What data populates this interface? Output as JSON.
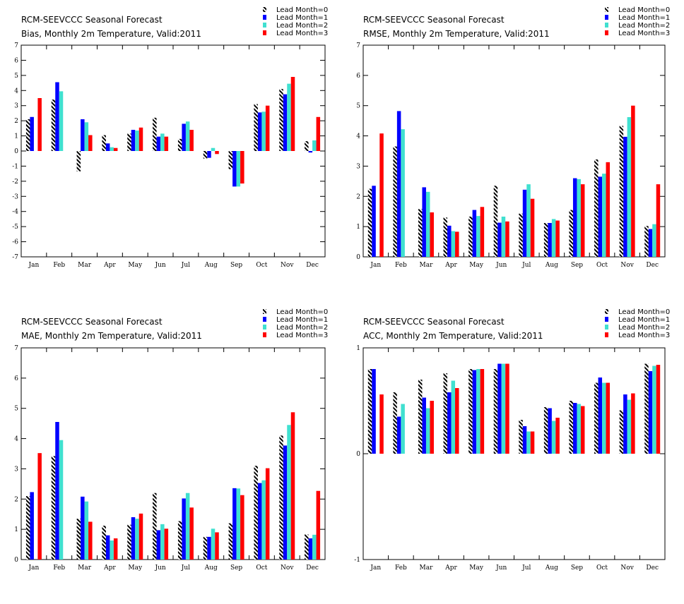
{
  "series_meta": [
    {
      "name": "Lead Month=0",
      "color": "#000000",
      "pattern": "hatch"
    },
    {
      "name": "Lead Month=1",
      "color": "#0000ff",
      "pattern": "solid"
    },
    {
      "name": "Lead Month=2",
      "color": "#40e0d0",
      "pattern": "solid"
    },
    {
      "name": "Lead Month=3",
      "color": "#ff0000",
      "pattern": "solid"
    }
  ],
  "chart_data": [
    {
      "type": "bar",
      "title": "RCM-SEEVCCC Seasonal Forecast",
      "subtitle": "Bias, Monthly 2m Temperature, Valid:2011",
      "categories": [
        "Jan",
        "Feb",
        "Mar",
        "Apr",
        "May",
        "Jun",
        "Jul",
        "Aug",
        "Sep",
        "Oct",
        "Nov",
        "Dec"
      ],
      "ylim": [
        -7,
        7
      ],
      "yticks": [
        -7,
        -6,
        -5,
        -4,
        -3,
        -2,
        -1,
        0,
        1,
        2,
        3,
        4,
        5,
        6,
        7
      ],
      "legend": "top-right",
      "series": [
        {
          "name": "Lead Month=0",
          "values": [
            2.1,
            3.4,
            -1.35,
            1.05,
            1.15,
            2.2,
            0.8,
            -0.5,
            -1.2,
            3.1,
            4.1,
            0.65
          ]
        },
        {
          "name": "Lead Month=1",
          "values": [
            2.25,
            4.55,
            2.1,
            0.5,
            1.4,
            0.95,
            1.8,
            -0.45,
            -2.35,
            2.55,
            3.75,
            -0.1
          ]
        },
        {
          "name": "Lead Month=2",
          "values": [
            0,
            3.95,
            1.9,
            0.25,
            1.35,
            1.15,
            1.95,
            0.2,
            -2.35,
            2.6,
            4.45,
            0.7
          ]
        },
        {
          "name": "Lead Month=3",
          "values": [
            3.5,
            0,
            1.05,
            0.2,
            1.55,
            0.95,
            1.4,
            -0.2,
            -2.15,
            3.0,
            4.9,
            2.25
          ]
        }
      ]
    },
    {
      "type": "bar",
      "title": "RCM-SEEVCCC Seasonal Forecast",
      "subtitle": "RMSE, Monthly 2m Temperature, Valid:2011",
      "categories": [
        "Jan",
        "Feb",
        "Mar",
        "Apr",
        "May",
        "Jun",
        "Jul",
        "Aug",
        "Sep",
        "Oct",
        "Nov",
        "Dec"
      ],
      "ylim": [
        0,
        7
      ],
      "yticks": [
        0,
        1,
        2,
        3,
        4,
        5,
        6,
        7
      ],
      "legend": "top-right",
      "series": [
        {
          "name": "Lead Month=0",
          "values": [
            2.25,
            3.65,
            1.58,
            1.3,
            1.33,
            2.35,
            1.43,
            1.12,
            1.55,
            3.22,
            4.33,
            1.02
          ]
        },
        {
          "name": "Lead Month=1",
          "values": [
            2.35,
            4.82,
            2.3,
            1.03,
            1.55,
            1.13,
            2.22,
            1.12,
            2.6,
            2.65,
            3.97,
            0.92
          ]
        },
        {
          "name": "Lead Month=2",
          "values": [
            0,
            4.22,
            2.15,
            0.85,
            1.35,
            1.33,
            2.4,
            1.25,
            2.57,
            2.75,
            4.62,
            1.08
          ]
        },
        {
          "name": "Lead Month=3",
          "values": [
            4.08,
            0,
            1.47,
            0.83,
            1.65,
            1.17,
            1.92,
            1.2,
            2.4,
            3.13,
            5.0,
            2.4
          ]
        }
      ]
    },
    {
      "type": "bar",
      "title": "RCM-SEEVCCC Seasonal Forecast",
      "subtitle": "MAE, Monthly 2m Temperature, Valid:2011",
      "categories": [
        "Jan",
        "Feb",
        "Mar",
        "Apr",
        "May",
        "Jun",
        "Jul",
        "Aug",
        "Sep",
        "Oct",
        "Nov",
        "Dec"
      ],
      "ylim": [
        0,
        7
      ],
      "yticks": [
        0,
        1,
        2,
        3,
        4,
        5,
        6,
        7
      ],
      "legend": "top-right",
      "series": [
        {
          "name": "Lead Month=0",
          "values": [
            2.1,
            3.42,
            1.35,
            1.12,
            1.15,
            2.2,
            1.27,
            0.75,
            1.2,
            3.1,
            4.1,
            0.83
          ]
        },
        {
          "name": "Lead Month=1",
          "values": [
            2.23,
            4.55,
            2.08,
            0.8,
            1.4,
            0.97,
            2.02,
            0.75,
            2.36,
            2.53,
            3.77,
            0.7
          ]
        },
        {
          "name": "Lead Month=2",
          "values": [
            0,
            3.95,
            1.92,
            0.63,
            1.35,
            1.17,
            2.2,
            1.02,
            2.35,
            2.62,
            4.45,
            0.82
          ]
        },
        {
          "name": "Lead Month=3",
          "values": [
            3.52,
            0,
            1.25,
            0.7,
            1.52,
            1.02,
            1.72,
            0.9,
            2.13,
            3.02,
            4.87,
            2.27
          ]
        }
      ]
    },
    {
      "type": "bar",
      "title": "RCM-SEEVCCC Seasonal Forecast",
      "subtitle": "ACC, Monthly 2m Temperature, Valid:2011",
      "categories": [
        "Jan",
        "Feb",
        "Mar",
        "Apr",
        "May",
        "Jun",
        "Jul",
        "Aug",
        "Sep",
        "Oct",
        "Nov",
        "Dec"
      ],
      "ylim": [
        -1,
        1
      ],
      "yticks": [
        -1,
        0,
        1
      ],
      "legend": "top-right",
      "series": [
        {
          "name": "Lead Month=0",
          "values": [
            0.8,
            0.58,
            0.7,
            0.76,
            0.8,
            0.8,
            0.32,
            0.44,
            0.5,
            0.67,
            0.41,
            0.85
          ]
        },
        {
          "name": "Lead Month=1",
          "values": [
            0.8,
            0.35,
            0.53,
            0.58,
            0.79,
            0.85,
            0.26,
            0.43,
            0.48,
            0.72,
            0.56,
            0.78
          ]
        },
        {
          "name": "Lead Month=2",
          "values": [
            0,
            0.47,
            0.43,
            0.69,
            0.8,
            0.85,
            0.21,
            0.31,
            0.47,
            0.67,
            0.51,
            0.83
          ]
        },
        {
          "name": "Lead Month=3",
          "values": [
            0.56,
            0,
            0.5,
            0.62,
            0.8,
            0.85,
            0.21,
            0.34,
            0.45,
            0.67,
            0.57,
            0.84
          ]
        }
      ]
    }
  ]
}
